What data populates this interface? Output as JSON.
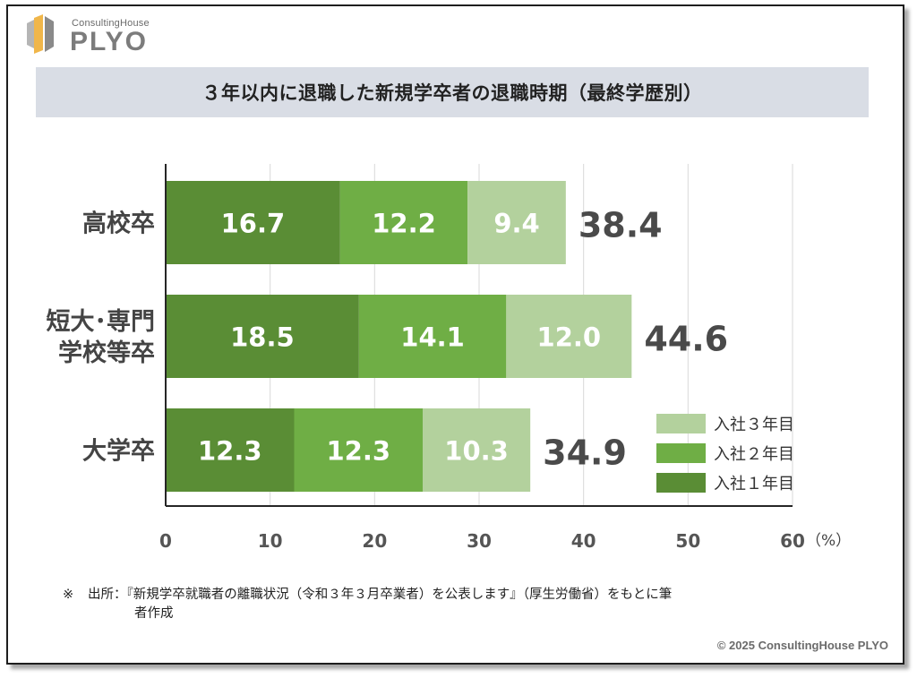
{
  "logo": {
    "small_text": "ConsultingHouse",
    "big_text": "PLYO"
  },
  "title": "３年以内に退職した新規学卒者の退職時期（最終学歴別）",
  "chart_data": {
    "type": "bar",
    "orientation": "horizontal",
    "stacked": true,
    "categories": [
      {
        "lines": [
          "高校卒"
        ]
      },
      {
        "lines": [
          "短大･専門",
          "学校等卒"
        ]
      },
      {
        "lines": [
          "大学卒"
        ]
      }
    ],
    "series": [
      {
        "name": "入社１年目",
        "color": "#5a8d35",
        "values": [
          16.7,
          18.5,
          12.3
        ]
      },
      {
        "name": "入社２年目",
        "color": "#6fae45",
        "values": [
          12.2,
          14.1,
          12.3
        ]
      },
      {
        "name": "入社３年目",
        "color": "#b3d19d",
        "values": [
          9.4,
          12.0,
          10.3
        ]
      }
    ],
    "totals": [
      38.4,
      44.6,
      34.9
    ],
    "legend_order": [
      "入社３年目",
      "入社２年目",
      "入社１年目"
    ],
    "legend_position": "right",
    "x_ticks": [
      0,
      10,
      20,
      30,
      40,
      50,
      60
    ],
    "xlim": [
      0,
      60
    ],
    "xlabel": "（%）",
    "grid": true,
    "data_label_color": "#ffffff",
    "total_label_color": "#4a4a4a",
    "axis_color": "#262626",
    "tick_label_color": "#555555",
    "category_label_color": "#444444",
    "grid_color": "#d9d9d9"
  },
  "source": {
    "mark": "※",
    "line1": "出所：『新規学卒就職者の離職状況（令和３年３月卒業者）を公表します』（厚生労働省）をもとに筆",
    "line2": "者作成"
  },
  "copyright": "© 2025 ConsultingHouse PLYO"
}
